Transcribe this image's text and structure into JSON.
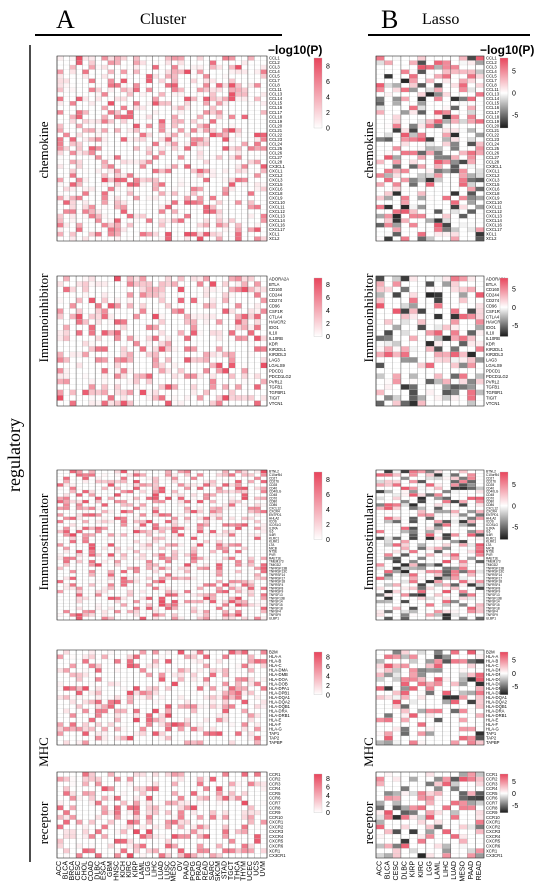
{
  "figure": {
    "panels": [
      {
        "letter": "A",
        "title": "Cluster"
      },
      {
        "letter": "B",
        "title": "Lasso"
      }
    ],
    "row_group_label": "regulatory",
    "colorbar_title": "−log10(P)"
  },
  "chart_data": [
    {
      "panel": "A",
      "type": "heatmap",
      "metric": "−log10(P)",
      "colorbar": {
        "ticks": [
          8,
          6,
          4,
          2,
          0
        ],
        "range": [
          0,
          9
        ],
        "colors": [
          "#ffffff",
          "#e8455c"
        ]
      },
      "columns": [
        "ACC",
        "BLCA",
        "BRCA",
        "CESC",
        "CHOL",
        "COAD",
        "DLBC",
        "ESCA",
        "GBM",
        "HNSC",
        "KICH",
        "KIRC",
        "KIRP",
        "LAML",
        "LGG",
        "LIHC",
        "LUAD",
        "LUSC",
        "MESO",
        "OV",
        "PAAD",
        "PCPG",
        "PRAD",
        "READ",
        "SARC",
        "SKCM",
        "STAD",
        "TGCT",
        "THCA",
        "THYM",
        "UCEC",
        "UCS",
        "UVM"
      ],
      "groups": [
        {
          "name": "chemokine",
          "genes": [
            "CCL1",
            "CCL2",
            "CCL3",
            "CCL4",
            "CCL5",
            "CCL7",
            "CCL8",
            "CCL11",
            "CCL13",
            "CCL14",
            "CCL15",
            "CCL16",
            "CCL17",
            "CCL18",
            "CCL19",
            "CCL20",
            "CCL21",
            "CCL22",
            "CCL23",
            "CCL24",
            "CCL25",
            "CCL26",
            "CCL27",
            "CCL28",
            "CX3CL1",
            "CXCL1",
            "CXCL2",
            "CXCL3",
            "CXCL5",
            "CXCL6",
            "CXCL8",
            "CXCL9",
            "CXCL10",
            "CXCL11",
            "CXCL12",
            "CXCL13",
            "CXCL14",
            "CXCL16",
            "CXCL17",
            "XCL1",
            "XCL2"
          ]
        },
        {
          "name": "Immunoinhibitor",
          "genes": [
            "ADORA2A",
            "BTLA",
            "CD160",
            "CD244",
            "CD274",
            "CD96",
            "CSF1R",
            "CTLA4",
            "HAVCR2",
            "IDO1",
            "IL10",
            "IL10RB",
            "KDR",
            "KIR2DL1",
            "KIR2DL3",
            "LAG3",
            "LGALS9",
            "PDCD1",
            "PDCD1LG2",
            "PVRL2",
            "TGFB1",
            "TGFBR1",
            "TIGIT",
            "VTCN1"
          ]
        },
        {
          "name": "Immunostimulator",
          "genes": [
            "BTNL2",
            "C10orf54",
            "CD27",
            "CD276",
            "CD28",
            "CD40",
            "CD40LG",
            "CD48",
            "CD70",
            "CD80",
            "CD86",
            "CXCL12",
            "CXCR4",
            "ENTPD1",
            "HHLA2",
            "ICOS",
            "ICOSLG",
            "IL2RA",
            "IL6",
            "IL6R",
            "KLRC1",
            "KLRK1",
            "LTA",
            "MICB",
            "NT5E",
            "PVR",
            "RAET1E",
            "TMEM173",
            "TMIGD2",
            "TNFRSF13B",
            "TNFRSF13C",
            "TNFRSF14",
            "TNFRSF17",
            "TNFRSF18",
            "TNFRSF4",
            "TNFRSF8",
            "TNFRSF9",
            "TNFSF13",
            "TNFSF13B",
            "TNFSF14",
            "TNFSF15",
            "TNFSF18",
            "TNFSF4",
            "TNFSF9",
            "ULBP1"
          ]
        },
        {
          "name": "MHC",
          "genes": [
            "B2M",
            "HLA-A",
            "HLA-B",
            "HLA-C",
            "HLA-DMA",
            "HLA-DMB",
            "HLA-DOA",
            "HLA-DOB",
            "HLA-DPA1",
            "HLA-DPB1",
            "HLA-DQA1",
            "HLA-DQA2",
            "HLA-DQB1",
            "HLA-DRA",
            "HLA-DRB1",
            "HLA-E",
            "HLA-F",
            "HLA-G",
            "TAP1",
            "TAP2",
            "TAPBP"
          ]
        },
        {
          "name": "receptor",
          "genes": [
            "CCR1",
            "CCR2",
            "CCR3",
            "CCR4",
            "CCR5",
            "CCR6",
            "CCR7",
            "CCR8",
            "CCR9",
            "CCR10",
            "CXCR1",
            "CXCR2",
            "CXCR3",
            "CXCR4",
            "CXCR5",
            "CXCR6",
            "XCR1",
            "CX3CR1"
          ]
        }
      ]
    },
    {
      "panel": "B",
      "type": "heatmap",
      "metric": "−log10(P)",
      "colorbar": {
        "ticks": [
          5,
          0,
          -5
        ],
        "range": [
          -8,
          8
        ],
        "colors": [
          "#1a1a1a",
          "#ffffff",
          "#e8455c"
        ]
      },
      "columns": [
        "ACC",
        "BLCA",
        "CESC",
        "DLBC",
        "KIRP",
        "KIRC",
        "LGG",
        "LAML",
        "LIHC",
        "LUAD",
        "MESO",
        "PAAD",
        "READ"
      ],
      "groups": [
        {
          "name": "chemokine",
          "genes": [
            "CCL1",
            "CCL2",
            "CCL3",
            "CCL4",
            "CCL5",
            "CCL7",
            "CCL8",
            "CCL11",
            "CCL13",
            "CCL14",
            "CCL15",
            "CCL16",
            "CCL17",
            "CCL18",
            "CCL19",
            "CCL20",
            "CCL21",
            "CCL22",
            "CCL23",
            "CCL24",
            "CCL25",
            "CCL26",
            "CCL27",
            "CCL28",
            "CX3CL1",
            "CXCL1",
            "CXCL2",
            "CXCL3",
            "CXCL5",
            "CXCL6",
            "CXCL8",
            "CXCL9",
            "CXCL10",
            "CXCL11",
            "CXCL12",
            "CXCL13",
            "CXCL14",
            "CXCL16",
            "CXCL17",
            "XCL1",
            "XCL2"
          ]
        },
        {
          "name": "Immunoinhibitor",
          "genes": [
            "ADORA2A",
            "BTLA",
            "CD160",
            "CD244",
            "CD274",
            "CD96",
            "CSF1R",
            "CTLA4",
            "HAVCR2",
            "IDO1",
            "IL10",
            "IL10RB",
            "KDR",
            "KIR2DL1",
            "KIR2DL3",
            "LAG3",
            "LGALS9",
            "PDCD1",
            "PDCD1LG2",
            "PVRL2",
            "TGFB1",
            "TGFBR1",
            "TIGIT",
            "VTCN1"
          ]
        },
        {
          "name": "Immunostimulator",
          "genes": [
            "BTNL2",
            "C10orf54",
            "CD27",
            "CD276",
            "CD28",
            "CD40",
            "CD40LG",
            "CD48",
            "CD70",
            "CD80",
            "CD86",
            "CXCL12",
            "CXCR4",
            "ENTPD1",
            "HHLA2",
            "ICOS",
            "ICOSLG",
            "IL2RA",
            "IL6",
            "IL6R",
            "KLRC1",
            "KLRK1",
            "LTA",
            "MICB",
            "NT5E",
            "PVR",
            "RAET1E",
            "TMEM173",
            "TMIGD2",
            "TNFRSF13B",
            "TNFRSF13C",
            "TNFRSF14",
            "TNFRSF17",
            "TNFRSF18",
            "TNFRSF4",
            "TNFRSF8",
            "TNFRSF9",
            "TNFSF13",
            "TNFSF13B",
            "TNFSF14",
            "TNFSF15",
            "TNFSF18",
            "TNFSF4",
            "TNFSF9",
            "ULBP1"
          ]
        },
        {
          "name": "MHC",
          "genes": [
            "B2M",
            "HLA-A",
            "HLA-B",
            "HLA-C",
            "HLA-DMA",
            "HLA-DMB",
            "HLA-DOA",
            "HLA-DOB",
            "HLA-DPA1",
            "HLA-DPB1",
            "HLA-DQA1",
            "HLA-DQA2",
            "HLA-DQB1",
            "HLA-DRA",
            "HLA-DRB1",
            "HLA-E",
            "HLA-F",
            "HLA-G",
            "TAP1",
            "TAP2",
            "TAPBP"
          ]
        },
        {
          "name": "receptor",
          "genes": [
            "CCR1",
            "CCR2",
            "CCR3",
            "CCR4",
            "CCR5",
            "CCR6",
            "CCR7",
            "CCR8",
            "CCR9",
            "CCR10",
            "CXCR1",
            "CXCR2",
            "CXCR3",
            "CXCR4",
            "CXCR5",
            "CXCR6",
            "XCR1",
            "CX3CR1"
          ]
        }
      ]
    }
  ]
}
